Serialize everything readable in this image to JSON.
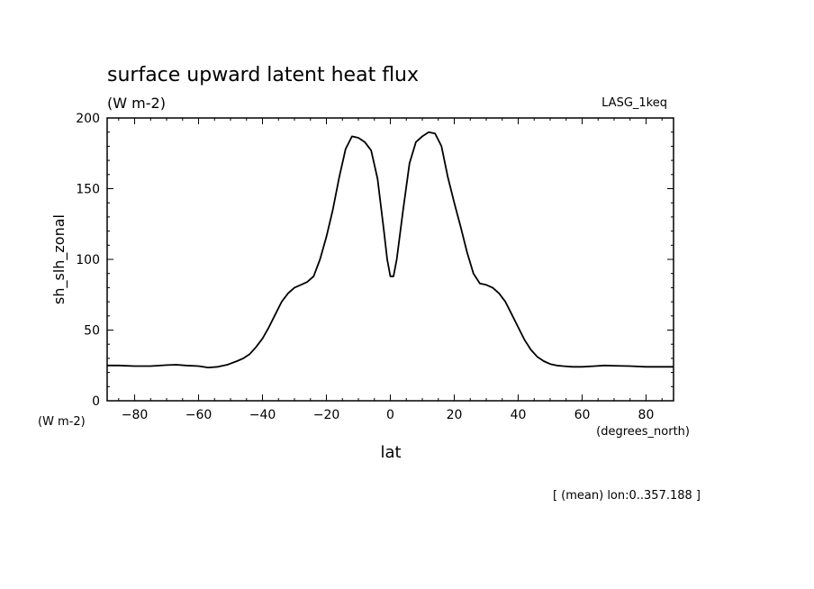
{
  "chart_data": {
    "type": "line",
    "title": "surface upward latent heat flux",
    "subtitle": "(W m-2)",
    "dataset_label": "LASG_1keq",
    "ylabel": "sh_slh_zonal",
    "yunits": "(W m-2)",
    "xlabel": "lat",
    "xunits": "(degrees_north)",
    "note": "[ (mean) lon:0..357.188 ]",
    "xlim": [
      -88.6,
      88.6
    ],
    "ylim": [
      0,
      200
    ],
    "x_ticks": [
      -80,
      -60,
      -40,
      -20,
      0,
      20,
      40,
      60,
      80
    ],
    "x_tick_labels": [
      "−80",
      "−60",
      "−40",
      "−20",
      "0",
      "20",
      "40",
      "60",
      "80"
    ],
    "y_ticks": [
      0,
      50,
      100,
      150,
      200
    ],
    "y_tick_labels": [
      "0",
      "50",
      "100",
      "150",
      "200"
    ],
    "grid": false,
    "series": [
      {
        "x": [
          -88.6,
          -85,
          -80,
          -75,
          -70,
          -67,
          -64,
          -60,
          -57,
          -54,
          -51,
          -48,
          -46,
          -44,
          -42,
          -40,
          -38,
          -36,
          -34,
          -32,
          -30,
          -28,
          -26,
          -24,
          -22,
          -20,
          -18,
          -16,
          -14,
          -12,
          -10,
          -8,
          -6,
          -4,
          -2,
          -1,
          0,
          1,
          2,
          4,
          6,
          8,
          10,
          12,
          14,
          16,
          18,
          20,
          22,
          24,
          26,
          28,
          30,
          32,
          34,
          36,
          38,
          40,
          42,
          44,
          46,
          48,
          50,
          52,
          54,
          57,
          60,
          64,
          67,
          70,
          75,
          80,
          85,
          88.6
        ],
        "y": [
          25,
          25,
          24.5,
          24.5,
          25.2,
          25.5,
          25,
          24.5,
          23.5,
          24,
          25.5,
          28,
          30,
          33,
          38,
          44,
          52,
          61,
          70,
          76,
          80,
          82,
          84,
          88,
          100,
          116,
          135,
          158,
          178,
          187,
          186,
          183,
          177,
          157,
          120,
          100,
          88,
          88,
          100,
          135,
          168,
          183,
          187,
          190,
          189,
          180,
          158,
          140,
          123,
          105,
          90,
          83,
          82,
          80,
          76,
          70,
          61,
          52,
          43,
          36,
          31,
          28,
          26,
          25,
          24.5,
          24,
          24,
          24.5,
          25,
          24.8,
          24.5,
          24,
          24,
          24
        ]
      }
    ]
  }
}
